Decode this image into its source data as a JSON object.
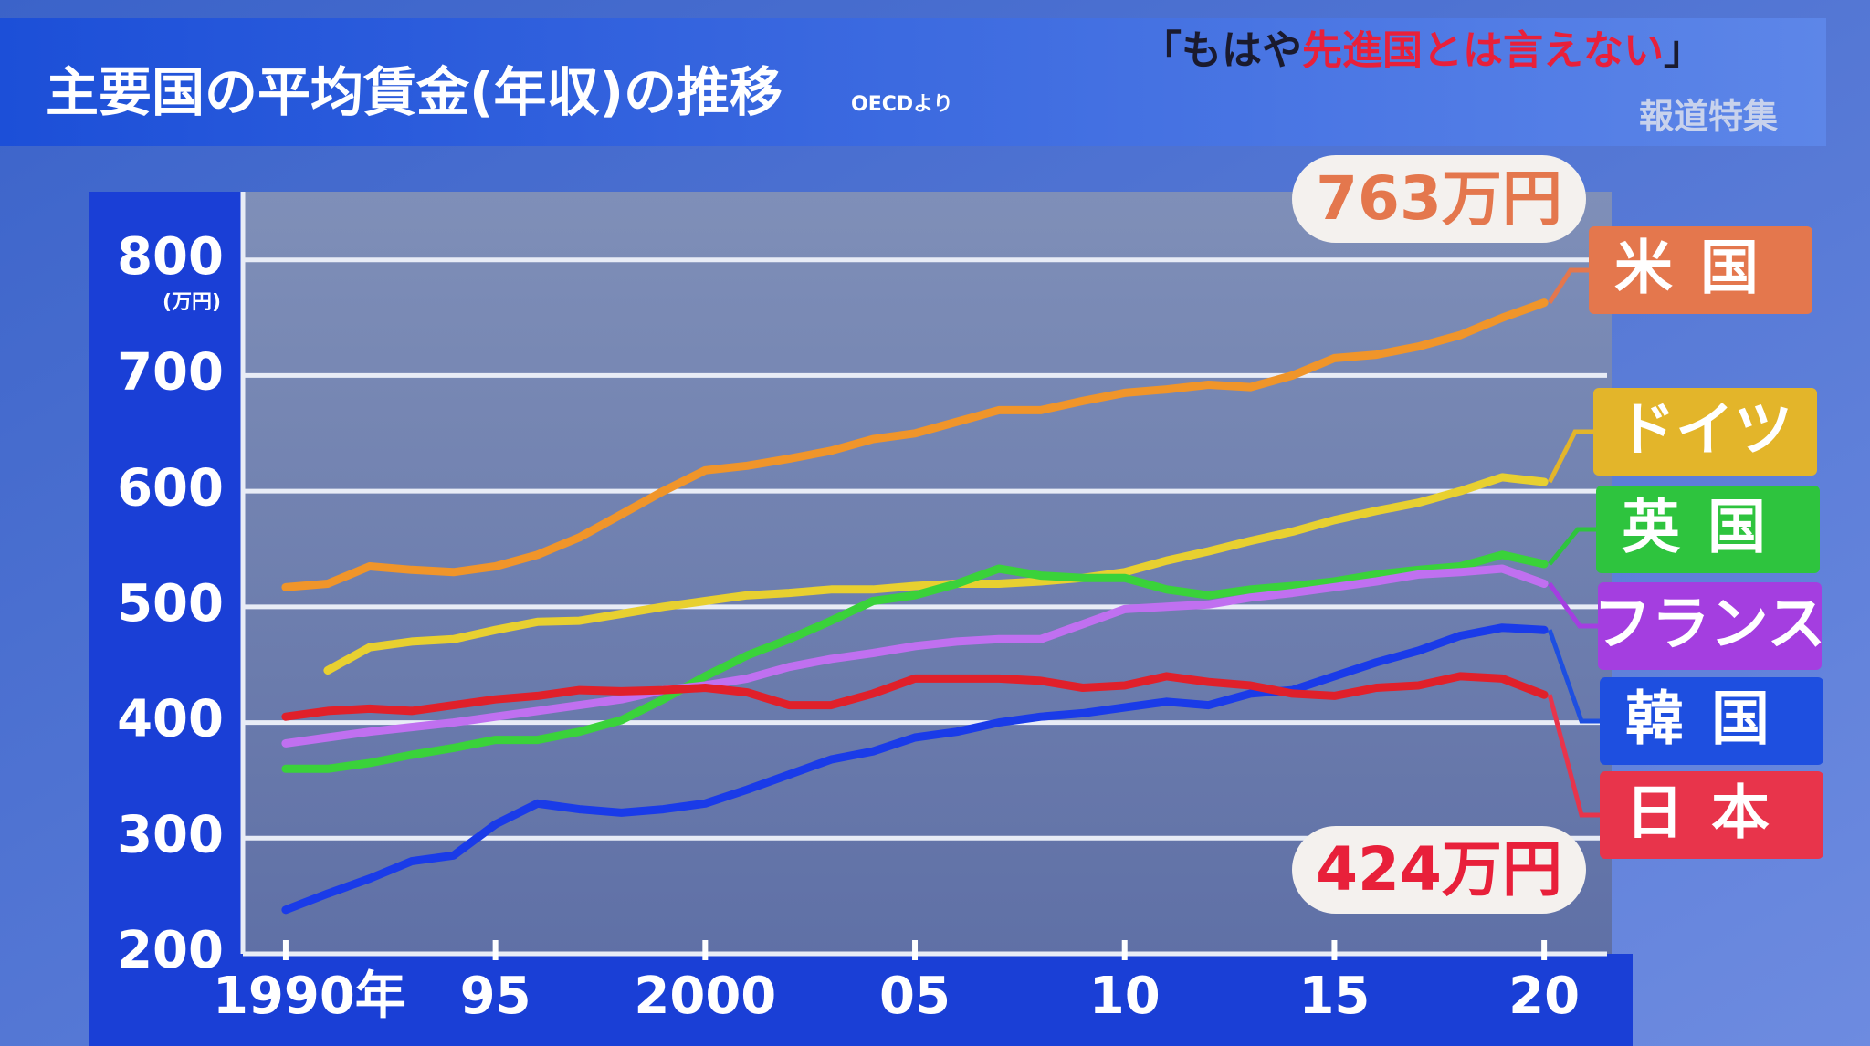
{
  "chart_data": {
    "type": "line",
    "title": "主要国の平均賃金(年収)の推移",
    "source": "OECDより",
    "headline": [
      "「もはや",
      "先進国とは言えない",
      "」"
    ],
    "program": "報道特集",
    "y_unit": "(万円)",
    "x": [
      1990,
      1991,
      1992,
      1993,
      1994,
      1995,
      1996,
      1997,
      1998,
      1999,
      2000,
      2001,
      2002,
      2003,
      2004,
      2005,
      2006,
      2007,
      2008,
      2009,
      2010,
      2011,
      2012,
      2013,
      2014,
      2015,
      2016,
      2017,
      2018,
      2019,
      2020
    ],
    "xlim": [
      1989,
      2022
    ],
    "xticks": [
      {
        "value": 1990,
        "label": "1990年"
      },
      {
        "value": 1995,
        "label": "95"
      },
      2000,
      {
        "value": 2005,
        "label": "05"
      },
      {
        "value": 2010,
        "label": "10"
      },
      {
        "value": 2015,
        "label": "15"
      },
      {
        "value": 2020,
        "label": "20"
      }
    ],
    "ylim": [
      200,
      855
    ],
    "yticks": [
      200,
      300,
      400,
      500,
      600,
      700,
      800
    ],
    "grid": true,
    "legend": "right",
    "series": [
      {
        "name": "米国",
        "color": "#f0952a",
        "box_color": "#e4774d",
        "values": [
          517,
          520,
          535,
          532,
          530,
          535,
          545,
          560,
          580,
          600,
          618,
          622,
          628,
          635,
          645,
          650,
          660,
          670,
          670,
          678,
          685,
          688,
          692,
          690,
          700,
          715,
          718,
          725,
          735,
          750,
          763
        ],
        "value_labels": [
          null,
          null,
          null,
          null,
          null,
          null,
          null,
          null,
          null,
          null,
          null,
          null,
          null,
          null,
          null,
          null,
          null,
          null,
          null,
          null,
          null,
          null,
          null,
          null,
          null,
          null,
          null,
          null,
          null,
          null,
          "763万円"
        ]
      },
      {
        "name": "ドイツ",
        "color": "#e8d030",
        "box_color": "#e3b52a",
        "values": [
          null,
          445,
          465,
          470,
          472,
          480,
          487,
          488,
          494,
          500,
          505,
          510,
          512,
          515,
          515,
          518,
          520,
          520,
          522,
          525,
          530,
          540,
          548,
          557,
          565,
          575,
          583,
          590,
          600,
          612,
          608
        ]
      },
      {
        "name": "英国",
        "color": "#3ad23a",
        "box_color": "#2ec43e",
        "values": [
          360,
          360,
          365,
          372,
          378,
          385,
          385,
          392,
          402,
          420,
          440,
          458,
          472,
          488,
          505,
          510,
          520,
          533,
          527,
          525,
          525,
          515,
          510,
          515,
          518,
          522,
          528,
          532,
          535,
          545,
          537
        ]
      },
      {
        "name": "フランス",
        "color": "#c070f0",
        "box_color": "#a43ee0",
        "values": [
          382,
          387,
          392,
          396,
          400,
          405,
          410,
          415,
          420,
          428,
          432,
          438,
          448,
          455,
          460,
          466,
          470,
          472,
          472,
          485,
          498,
          500,
          502,
          508,
          512,
          517,
          522,
          528,
          530,
          533,
          520
        ]
      },
      {
        "name": "韓国",
        "color": "#1a3be8",
        "box_color": "#1e4fe0",
        "values": [
          238,
          252,
          265,
          280,
          285,
          312,
          330,
          325,
          322,
          325,
          330,
          342,
          355,
          368,
          375,
          387,
          392,
          400,
          405,
          408,
          413,
          418,
          415,
          425,
          428,
          440,
          452,
          462,
          475,
          482,
          480
        ]
      },
      {
        "name": "日本",
        "color": "#e0202a",
        "box_color": "#e8344b",
        "values": [
          405,
          410,
          412,
          410,
          415,
          420,
          423,
          428,
          427,
          428,
          430,
          426,
          415,
          415,
          425,
          438,
          438,
          438,
          436,
          430,
          432,
          440,
          435,
          432,
          425,
          423,
          430,
          432,
          440,
          438,
          424
        ],
        "value_labels": [
          null,
          null,
          null,
          null,
          null,
          null,
          null,
          null,
          null,
          null,
          null,
          null,
          null,
          null,
          null,
          null,
          null,
          null,
          null,
          null,
          null,
          null,
          null,
          null,
          null,
          null,
          null,
          null,
          null,
          null,
          "424万円"
        ]
      }
    ]
  }
}
